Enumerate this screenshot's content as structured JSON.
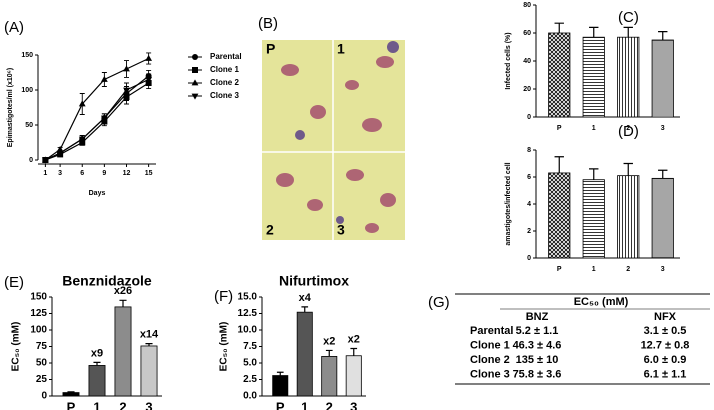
{
  "panel_labels": [
    "(A)",
    "(B)",
    "(C)",
    "(D)",
    "(E)",
    "(F)",
    "(G)"
  ],
  "image_panel": {
    "labels": [
      "P",
      "1",
      "2",
      "3"
    ]
  },
  "chart_data": [
    {
      "type": "line",
      "y_label": "Epimastigotes/ml (x10⁶)",
      "x_label": "Days",
      "x": [
        1,
        3,
        6,
        9,
        12,
        15
      ],
      "xlim": [
        0,
        16
      ],
      "xticks": [
        1,
        3,
        6,
        9,
        12,
        15
      ],
      "ylim": [
        0,
        150
      ],
      "yticks": [
        0,
        50,
        100,
        150
      ],
      "series": [
        {
          "name": "Parental",
          "marker": "circle",
          "color": "#000000",
          "values": [
            0,
            10,
            30,
            60,
            95,
            120
          ],
          "errors": [
            0,
            2,
            5,
            6,
            10,
            8
          ]
        },
        {
          "name": "Clone 1",
          "marker": "square",
          "color": "#000000",
          "values": [
            0,
            8,
            25,
            55,
            90,
            110
          ],
          "errors": [
            0,
            2,
            4,
            6,
            10,
            8
          ]
        },
        {
          "name": "Clone 2",
          "marker": "triangle-up",
          "color": "#000000",
          "values": [
            0,
            15,
            80,
            115,
            130,
            145
          ],
          "errors": [
            0,
            3,
            15,
            10,
            12,
            8
          ]
        },
        {
          "name": "Clone 3",
          "marker": "triangle-down",
          "color": "#000000",
          "values": [
            0,
            10,
            30,
            60,
            100,
            115
          ],
          "errors": [
            0,
            2,
            5,
            6,
            10,
            8
          ]
        }
      ]
    },
    {
      "type": "bar",
      "y_label": "Infected cells (%)",
      "categories": [
        "P",
        "1",
        "2",
        "3"
      ],
      "values": [
        60,
        57,
        57,
        55
      ],
      "errors": [
        7,
        7,
        7,
        6
      ],
      "patterns": [
        "crosshatch",
        "horizontal",
        "vertical",
        "hdense"
      ],
      "ylim": [
        0,
        80
      ],
      "yticks": [
        0,
        20,
        40,
        60,
        80
      ]
    },
    {
      "type": "bar",
      "y_label": "amastigotes/infected cell",
      "categories": [
        "P",
        "1",
        "2",
        "3"
      ],
      "values": [
        6.3,
        5.8,
        6.1,
        5.9
      ],
      "errors": [
        1.2,
        0.8,
        0.9,
        0.6
      ],
      "patterns": [
        "crosshatch",
        "horizontal",
        "vertical",
        "hdense"
      ],
      "ylim": [
        0,
        8
      ],
      "yticks": [
        0,
        2,
        4,
        6,
        8
      ]
    },
    {
      "type": "bar",
      "title": "Benznidazole",
      "y_label": "EC₅₀ (mM)",
      "categories": [
        "P",
        "1",
        "2",
        "3"
      ],
      "values": [
        5.2,
        46.3,
        135,
        75.8
      ],
      "errors": [
        1.1,
        4.6,
        10,
        3.6
      ],
      "colors": [
        "#000000",
        "#555555",
        "#8c8c8c",
        "#c8c8c8"
      ],
      "fold_labels": [
        null,
        "x9",
        "x26",
        "x14"
      ],
      "ylim": [
        0,
        150
      ],
      "yticks": [
        0,
        25,
        50,
        75,
        100,
        125,
        150
      ]
    },
    {
      "type": "bar",
      "title": "Nifurtimox",
      "y_label": "EC₅₀ (mM)",
      "categories": [
        "P",
        "1",
        "2",
        "3"
      ],
      "values": [
        3.1,
        12.7,
        6.0,
        6.1
      ],
      "errors": [
        0.5,
        0.8,
        0.9,
        1.1
      ],
      "colors": [
        "#000000",
        "#555555",
        "#8c8c8c",
        "#e0e0e0"
      ],
      "fold_labels": [
        null,
        "x4",
        "x2",
        "x2"
      ],
      "ylim": [
        0,
        15
      ],
      "yticks": [
        {
          "value": 0,
          "label": "0.0"
        },
        2.5,
        {
          "value": 5,
          "label": "5.0"
        },
        7.5,
        {
          "value": 10,
          "label": "10.0"
        },
        12.5,
        {
          "value": 15,
          "label": "15.0"
        }
      ]
    }
  ],
  "table": {
    "header": "EC₅₀ (mM)",
    "columns": [
      "BNZ",
      "NFX"
    ],
    "rows": [
      [
        "Parental",
        "5.2 ± 1.1",
        "3.1 ± 0.5"
      ],
      [
        "Clone 1",
        "46.3 ± 4.6",
        "12.7 ± 0.8"
      ],
      [
        "Clone 2",
        "135 ± 10",
        "6.0 ± 0.9"
      ],
      [
        "Clone 3",
        "75.8 ± 3.6",
        "6.1 ± 1.1"
      ]
    ]
  }
}
